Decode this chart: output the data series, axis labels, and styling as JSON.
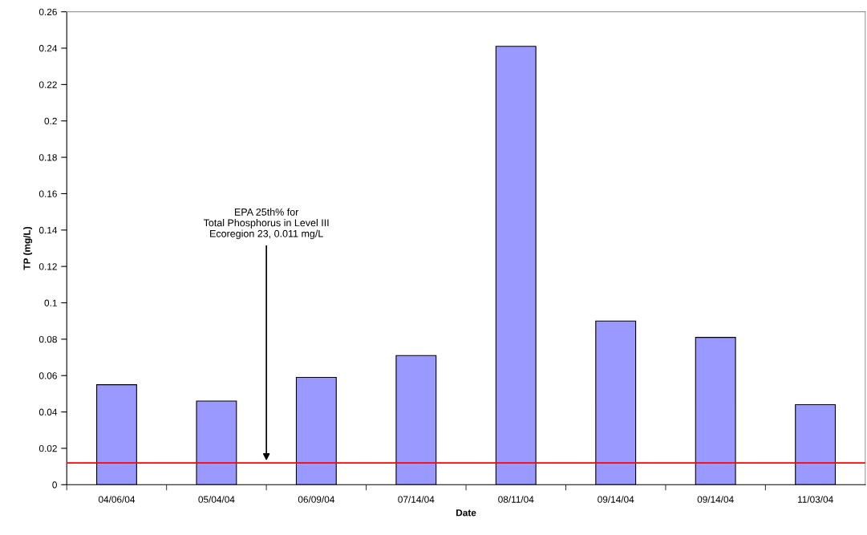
{
  "chart_data": {
    "type": "bar",
    "xlabel": "Date",
    "ylabel": "TP (mg/L)",
    "categories": [
      "04/06/04",
      "05/04/04",
      "06/09/04",
      "07/14/04",
      "08/11/04",
      "09/14/04",
      "09/14/04",
      "11/03/04"
    ],
    "values": [
      0.055,
      0.046,
      0.059,
      0.071,
      0.241,
      0.09,
      0.081,
      0.044
    ],
    "color": "#9999ff",
    "ylim": [
      0,
      0.26
    ],
    "yticks": [
      {
        "value": 0,
        "label": "0"
      },
      0.02,
      0.04,
      0.06,
      0.08,
      {
        "value": 0.1,
        "label": "0.1"
      },
      0.12,
      0.14,
      0.16,
      0.18,
      {
        "value": 0.2,
        "label": "0.2"
      },
      0.22,
      0.24,
      0.26
    ],
    "ref_lines": [
      {
        "axis": "y",
        "value": 0.012,
        "label": null,
        "color": "#ff0000"
      }
    ],
    "annotations": [
      {
        "text": "EPA 25th% for\nTotal Phosphorus in Level III\nEcoregion 23, 0.011 mg/L",
        "y": 0.012
      }
    ],
    "grid": false,
    "legend": false
  }
}
